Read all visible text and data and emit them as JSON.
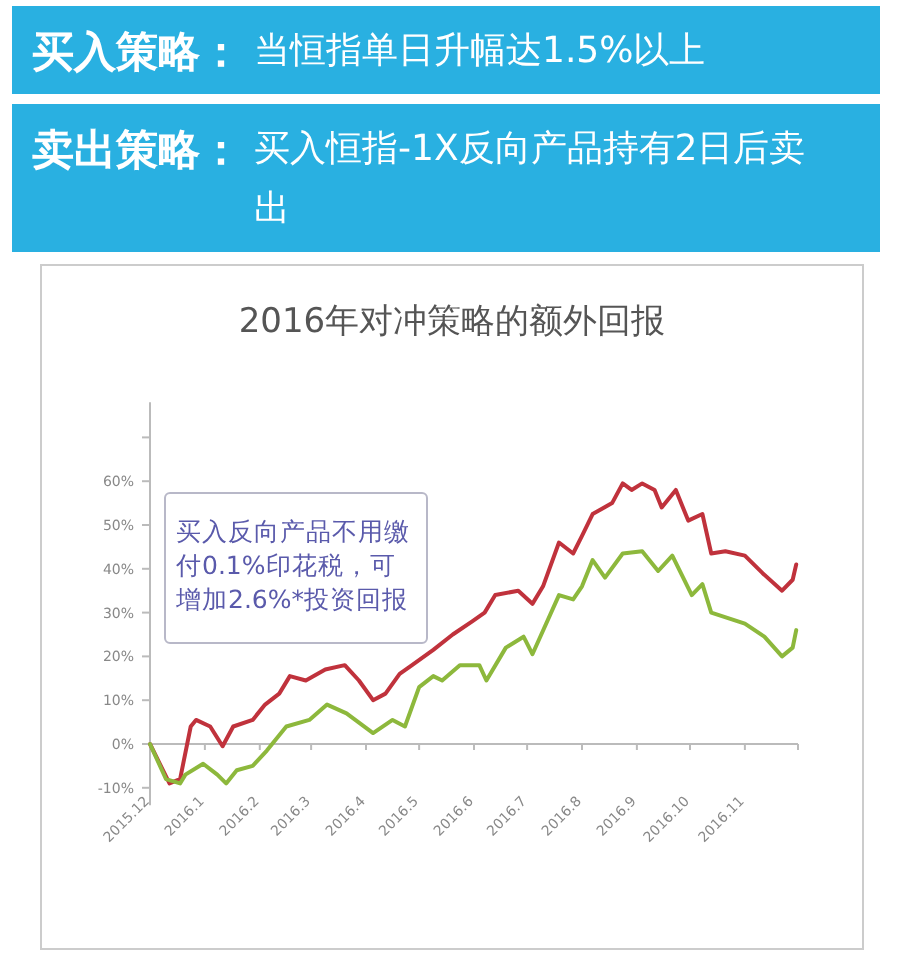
{
  "chart_data": {
    "type": "line",
    "title": "2016年对冲策略的额外回报",
    "annotations": [
      "**买入策略：**当恒指单日升幅达1.5%以上",
      "**卖出策略：**买入恒指-1X反向产品持有2日后卖出",
      "买入反向产品不用缴付0.1%印花税，可增加2.6%*投资回报"
    ],
    "xlim": [
      "2015-12-01",
      "2016-12-01"
    ],
    "xticks": [
      {
        "value": "2015-12-01",
        "label": "2015.12"
      },
      {
        "value": "2016-01-01",
        "label": "2016.1"
      },
      {
        "value": "2016-02-01",
        "label": "2016.2"
      },
      {
        "value": "2016-03-01",
        "label": "2016.3"
      },
      {
        "value": "2016-04-01",
        "label": "2016.4"
      },
      {
        "value": "2016-05-01",
        "label": "2016.5"
      },
      {
        "value": "2016-06-01",
        "label": "2016.6"
      },
      {
        "value": "2016-07-01",
        "label": "2016.7"
      },
      {
        "value": "2016-08-01",
        "label": "2016.8"
      },
      {
        "value": "2016-09-01",
        "label": "2016.9"
      },
      {
        "value": "2016-10-01",
        "label": "2016.10"
      },
      {
        "value": "2016-11-01",
        "label": "2016.11"
      },
      {
        "value": "2016-12-01",
        "label": null
      }
    ],
    "ylim": [
      -14,
      78
    ],
    "yticks": [
      {
        "value": -10,
        "label": "-10%"
      },
      {
        "value": 0,
        "label": "0%"
      },
      {
        "value": 10,
        "label": "10%"
      },
      {
        "value": 20,
        "label": "20%"
      },
      {
        "value": 30,
        "label": "30%"
      },
      {
        "value": 40,
        "label": "40%"
      },
      {
        "value": 50,
        "label": "50%"
      },
      {
        "value": 60,
        "label": "60%"
      },
      {
        "value": 70,
        "label": null
      }
    ],
    "series": [
      {
        "color": "#c0323c",
        "x": [
          "2015-12-01",
          "2015-12-12",
          "2015-12-18",
          "2015-12-24",
          "2015-12-27",
          "2016-01-04",
          "2016-01-11",
          "2016-01-17",
          "2016-01-28",
          "2016-02-04",
          "2016-02-12",
          "2016-02-18",
          "2016-02-27",
          "2016-03-09",
          "2016-03-20",
          "2016-03-28",
          "2016-04-05",
          "2016-04-12",
          "2016-04-20",
          "2016-04-27",
          "2016-05-09",
          "2016-05-20",
          "2016-05-31",
          "2016-06-07",
          "2016-06-13",
          "2016-06-26",
          "2016-07-04",
          "2016-07-10",
          "2016-07-19",
          "2016-07-27",
          "2016-08-01",
          "2016-08-07",
          "2016-08-18",
          "2016-08-24",
          "2016-08-29",
          "2016-09-04",
          "2016-09-11",
          "2016-09-15",
          "2016-09-23",
          "2016-09-30",
          "2016-10-08",
          "2016-10-13",
          "2016-10-21",
          "2016-11-01",
          "2016-11-11",
          "2016-11-22",
          "2016-11-28",
          "2016-11-30"
        ],
        "values": [
          0,
          -9,
          -8,
          4,
          5.5,
          4,
          -0.5,
          4,
          5.5,
          9,
          11.5,
          15.5,
          14.5,
          17,
          18,
          14.5,
          10,
          11.5,
          16,
          18,
          21.5,
          25,
          28,
          30,
          34,
          35,
          32,
          36,
          46,
          43.5,
          47.5,
          52.5,
          55,
          59.5,
          58,
          59.5,
          58,
          54,
          58,
          51,
          52.5,
          43.5,
          44,
          43,
          39,
          35,
          37.5,
          41
        ]
      },
      {
        "color": "#8db83c",
        "x": [
          "2015-12-01",
          "2015-12-10",
          "2015-12-18",
          "2015-12-21",
          "2015-12-31",
          "2016-01-08",
          "2016-01-13",
          "2016-01-19",
          "2016-01-28",
          "2016-02-05",
          "2016-02-16",
          "2016-02-29",
          "2016-03-10",
          "2016-03-21",
          "2016-04-05",
          "2016-04-16",
          "2016-04-23",
          "2016-05-01",
          "2016-05-09",
          "2016-05-14",
          "2016-05-24",
          "2016-06-04",
          "2016-06-08",
          "2016-06-19",
          "2016-06-29",
          "2016-07-04",
          "2016-07-19",
          "2016-07-27",
          "2016-08-01",
          "2016-08-07",
          "2016-08-14",
          "2016-08-24",
          "2016-09-04",
          "2016-09-13",
          "2016-09-21",
          "2016-10-02",
          "2016-10-08",
          "2016-10-13",
          "2016-11-01",
          "2016-11-12",
          "2016-11-22",
          "2016-11-28",
          "2016-11-30"
        ],
        "values": [
          0,
          -8,
          -9,
          -7,
          -4.5,
          -7,
          -9,
          -6,
          -5,
          -1.5,
          4,
          5.5,
          9,
          7,
          2.5,
          5.5,
          4,
          13,
          15.5,
          14.5,
          18,
          18,
          14.5,
          22,
          24.5,
          20.5,
          34,
          33,
          36,
          42,
          38,
          43.5,
          44,
          39.5,
          43,
          34,
          36.5,
          30,
          27.5,
          24.5,
          20,
          22,
          26
        ]
      }
    ]
  }
}
